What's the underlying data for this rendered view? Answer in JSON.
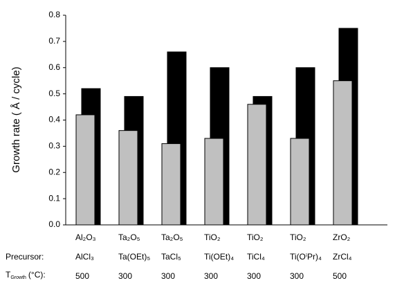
{
  "chart_data": {
    "type": "bar",
    "y_label": "Growth rate ( Å / cycle)",
    "categories": [
      "Al₂O₃",
      "Ta₂O₅",
      "Ta₂O₅",
      "TiO₂",
      "TiO₂",
      "TiO₂",
      "ZrO₂"
    ],
    "precursor_label": "Precursor:",
    "precursors": [
      "AlCl₃",
      "Ta(OEt)₅",
      "TaCl₅",
      "Ti(OEt)₄",
      "TiCl₄",
      "Ti(OⁱPr)₄",
      "ZrCl₄"
    ],
    "temperature_label": {
      "symbol": "T",
      "subscript": "Growth",
      "unit": "(°C):"
    },
    "temperatures": [
      500,
      300,
      300,
      300,
      300,
      300,
      500
    ],
    "series": [
      {
        "color": "#000000",
        "values": [
          0.52,
          0.49,
          0.66,
          0.6,
          0.49,
          0.6,
          0.75
        ]
      },
      {
        "color": "#c0c0c0",
        "values": [
          0.42,
          0.36,
          0.31,
          0.33,
          0.46,
          0.33,
          0.55
        ]
      }
    ],
    "ylim": [
      0,
      0.8
    ],
    "yticks": [
      {
        "value": 0,
        "label": "0.0"
      },
      0.1,
      0.2,
      0.3,
      0.4,
      0.5,
      0.6,
      0.7,
      0.8
    ]
  }
}
